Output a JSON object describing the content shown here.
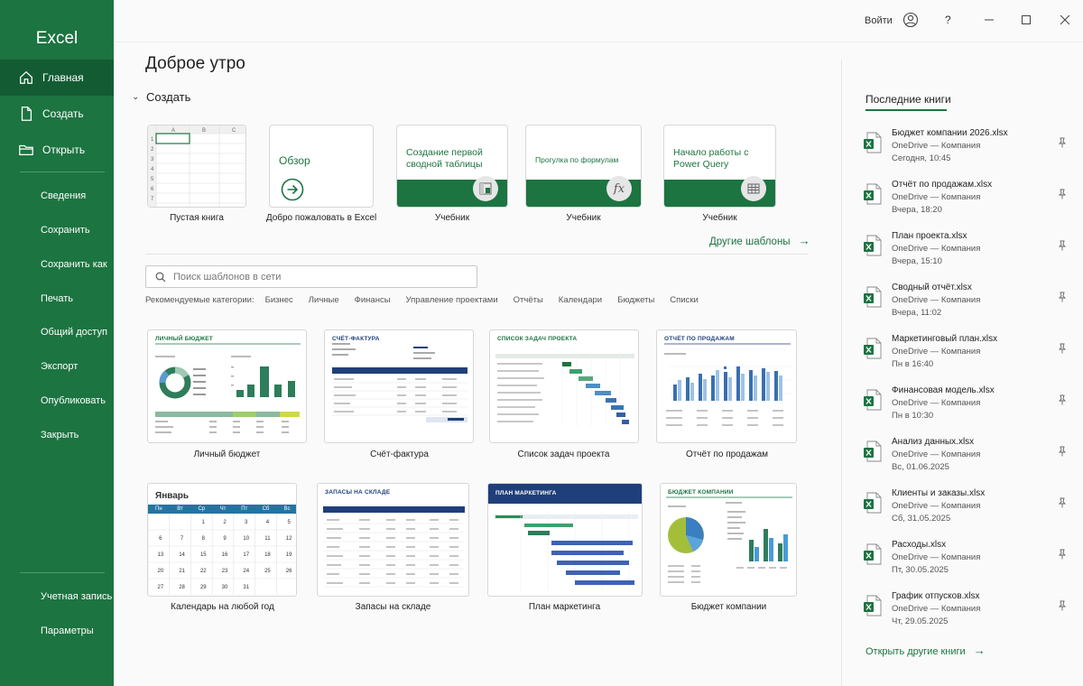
{
  "app": {
    "title": "Excel",
    "accent": "#1c7441"
  },
  "topbar": {
    "signin": "Войти",
    "help": "?"
  },
  "sidebar": {
    "main": [
      {
        "label": "Главная",
        "icon": "home-icon"
      },
      {
        "label": "Создать",
        "icon": "new-file-icon"
      },
      {
        "label": "Открыть",
        "icon": "folder-icon"
      }
    ],
    "sub": [
      "Сведения",
      "Сохранить",
      "Сохранить как",
      "Печать",
      "Общий доступ",
      "Экспорт",
      "Опубликовать",
      "Закрыть"
    ],
    "bottom": [
      "Учетная запись",
      "Параметры"
    ]
  },
  "main": {
    "greeting": "Доброе утро",
    "create_label": "Создать",
    "tiles": [
      {
        "caption": "Пустая книга"
      },
      {
        "caption": "Добро пожаловать в Excel",
        "text": "Обзор"
      },
      {
        "caption": "Учебник",
        "text": "Создание первой сводной таблицы"
      },
      {
        "caption": "Учебник",
        "text": "Прогулка по формулам"
      },
      {
        "caption": "Учебник",
        "text": "Начало работы с Power Query"
      }
    ],
    "more_templates": "Другие шаблоны",
    "search_placeholder": "Поиск шаблонов в сети",
    "categories_label": "Рекомендуемые категории:",
    "categories": [
      "Бизнес",
      "Личные",
      "Финансы",
      "Управление проектами",
      "Отчёты",
      "Календари",
      "Бюджеты",
      "Списки"
    ],
    "templates": [
      {
        "caption": "Личный бюджет",
        "header": "ЛИЧНЫЙ БЮДЖЕТ"
      },
      {
        "caption": "Счёт-фактура",
        "header": "СЧЁТ-ФАКТУРА"
      },
      {
        "caption": "Список задач проекта",
        "header": "СПИСОК ЗАДАЧ ПРОЕКТА"
      },
      {
        "caption": "Отчёт по продажам",
        "header": "ОТЧЁТ ПО ПРОДАЖАМ"
      },
      {
        "caption": "Календарь на любой год",
        "header": "Январь",
        "days": [
          "Пн",
          "Вт",
          "Ср",
          "Чт",
          "Пт",
          "Сб",
          "Вс"
        ]
      },
      {
        "caption": "Запасы на складе",
        "header": "ЗАПАСЫ НА СКЛАДЕ"
      },
      {
        "caption": "План маркетинга",
        "header": "ПЛАН МАРКЕТИНГА"
      },
      {
        "caption": "Бюджет компании",
        "header": "БЮДЖЕТ КОМПАНИИ"
      }
    ]
  },
  "recent": {
    "title": "Последние книги",
    "items": [
      {
        "name": "Бюджет компании 2026.xlsx",
        "location": "OneDrive — Компания",
        "date": "Сегодня, 10:45"
      },
      {
        "name": "Отчёт по продажам.xlsx",
        "location": "OneDrive — Компания",
        "date": "Вчера, 18:20"
      },
      {
        "name": "План проекта.xlsx",
        "location": "OneDrive — Компания",
        "date": "Вчера, 15:10"
      },
      {
        "name": "Сводный отчёт.xlsx",
        "location": "OneDrive — Компания",
        "date": "Вчера, 11:02"
      },
      {
        "name": "Маркетинговый план.xlsx",
        "location": "OneDrive — Компания",
        "date": "Пн в 16:40"
      },
      {
        "name": "Финансовая модель.xlsx",
        "location": "OneDrive — Компания",
        "date": "Пн в 10:30"
      },
      {
        "name": "Анализ данных.xlsx",
        "location": "OneDrive — Компания",
        "date": "Вс, 01.06.2025"
      },
      {
        "name": "Клиенты и заказы.xlsx",
        "location": "OneDrive — Компания",
        "date": "Сб, 31.05.2025"
      },
      {
        "name": "Расходы.xlsx",
        "location": "OneDrive — Компания",
        "date": "Пт, 30.05.2025"
      },
      {
        "name": "График отпусков.xlsx",
        "location": "OneDrive — Компания",
        "date": "Чт, 29.05.2025"
      }
    ],
    "open_more": "Открыть другие книги"
  }
}
